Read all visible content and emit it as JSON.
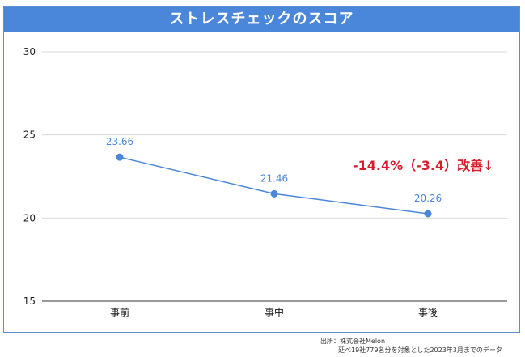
{
  "chart_data": {
    "type": "line",
    "title": "ストレスチェックのスコア",
    "categories": [
      "事前",
      "事中",
      "事後"
    ],
    "series": [
      {
        "name": "スコア",
        "values": [
          23.66,
          21.46,
          20.26
        ]
      }
    ],
    "data_labels": [
      "23.66",
      "21.46",
      "20.26"
    ],
    "ylim": [
      15,
      30
    ],
    "yticks": [
      15,
      20,
      25,
      30
    ],
    "ytick_labels": [
      "15",
      "20",
      "25",
      "30"
    ],
    "grid": true,
    "annotation": "-14.4%（-3.4）改善↓",
    "line_color": "#4a86d9",
    "annotation_color": "#d81e2c"
  },
  "source": {
    "line1": "出所：株式会社Melon",
    "line2": "延べ19社779名分を対象とした2023年3月までのデータ"
  }
}
